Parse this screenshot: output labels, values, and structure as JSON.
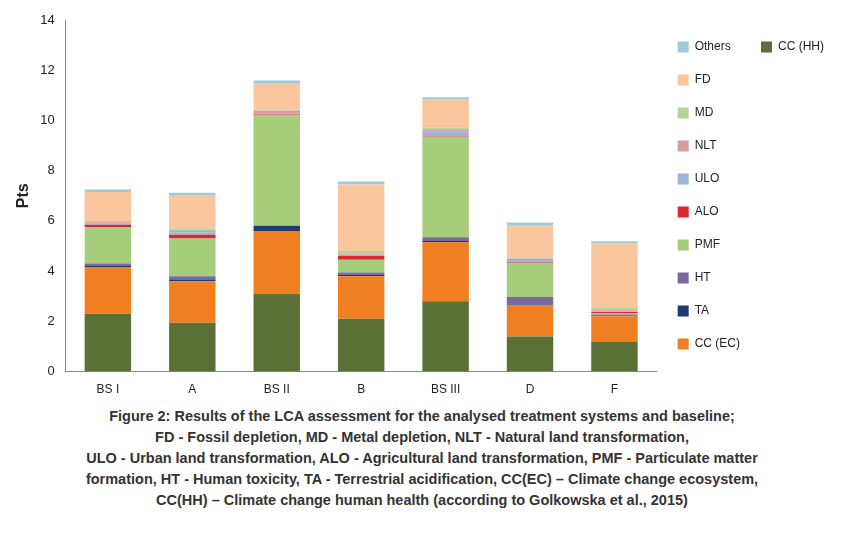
{
  "chart_data": {
    "type": "bar",
    "stacked": true,
    "legend": "right",
    "grid": false,
    "y_label": "Pts",
    "categories": [
      "BS I",
      "A",
      "BS II",
      "B",
      "BS III",
      "D",
      "F"
    ],
    "ylim": [
      0,
      14
    ],
    "yticks": [
      0,
      2,
      4,
      6,
      8,
      10,
      12,
      14
    ],
    "series": [
      {
        "name": "CC (HH)",
        "color": "#5b7035",
        "values": [
          2.3,
          1.95,
          3.1,
          2.1,
          2.8,
          1.4,
          1.2
        ]
      },
      {
        "name": "CC (EC)",
        "color": "#f07f22",
        "values": [
          1.85,
          1.65,
          2.5,
          1.7,
          2.35,
          1.25,
          1.0
        ]
      },
      {
        "name": "TA",
        "color": "#1f3a6e",
        "values": [
          0.05,
          0.05,
          0.2,
          0.05,
          0.05,
          0.02,
          0.02
        ]
      },
      {
        "name": "HT",
        "color": "#7b68a0",
        "values": [
          0.1,
          0.15,
          0.02,
          0.1,
          0.15,
          0.3,
          0.05
        ]
      },
      {
        "name": "PMF",
        "color": "#a5cd7a",
        "values": [
          1.45,
          1.5,
          4.4,
          0.5,
          4.0,
          1.35,
          0.05
        ]
      },
      {
        "name": "ALO",
        "color": "#d9282f",
        "values": [
          0.1,
          0.15,
          0.02,
          0.15,
          0.02,
          0.02,
          0.05
        ]
      },
      {
        "name": "ULO",
        "color": "#9db5d8",
        "values": [
          0.05,
          0.1,
          0.05,
          0.05,
          0.2,
          0.1,
          0.02
        ]
      },
      {
        "name": "NLT",
        "color": "#d99a9a",
        "values": [
          0.05,
          0.05,
          0.1,
          0.05,
          0.05,
          0.05,
          0.05
        ]
      },
      {
        "name": "MD",
        "color": "#b5d29b",
        "values": [
          0.05,
          0.1,
          0.05,
          0.1,
          0.1,
          0.05,
          0.1
        ]
      },
      {
        "name": "FD",
        "color": "#fbc59d",
        "values": [
          1.15,
          1.3,
          1.05,
          2.65,
          1.1,
          1.3,
          2.55
        ]
      },
      {
        "name": "Others",
        "color": "#9ccbd9",
        "values": [
          0.1,
          0.12,
          0.1,
          0.12,
          0.1,
          0.1,
          0.1
        ]
      }
    ],
    "caption": [
      "Figure 2: Results of the LCA assessment for the analysed treatment systems and baseline;",
      "FD - Fossil depletion, MD - Metal depletion, NLT - Natural land transformation,",
      "ULO - Urban land transformation, ALO - Agricultural land transformation, PMF - Particulate matter",
      "formation, HT - Human toxicity, TA - Terrestrial acidification, CC(EC) – Climate change ecosystem,",
      "CC(HH) – Climate change human health (according to Golkowska et al., 2015)"
    ]
  }
}
